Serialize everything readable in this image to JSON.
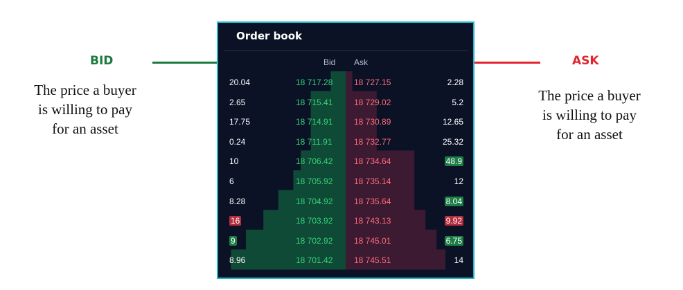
{
  "bid_side": {
    "title": "BID",
    "description": [
      "The price a buyer",
      "is willing to pay",
      "for an asset"
    ],
    "color": "#1a7a3c"
  },
  "ask_side": {
    "title": "ASK",
    "description": [
      "The price a buyer",
      "is willing to pay",
      "for an asset"
    ],
    "color": "#e2242d"
  },
  "order_book": {
    "title": "Order book",
    "bid_header": "Bid",
    "ask_header": "Ask",
    "rows": [
      {
        "bid_qty": "20.04",
        "bid_price": "18 717.28",
        "ask_price": "18 727.15",
        "ask_qty": "2.28"
      },
      {
        "bid_qty": "2.65",
        "bid_price": "18 715.41",
        "ask_price": "18 729.02",
        "ask_qty": "5.2"
      },
      {
        "bid_qty": "17.75",
        "bid_price": "18 714.91",
        "ask_price": "18 730.89",
        "ask_qty": "12.65"
      },
      {
        "bid_qty": "0.24",
        "bid_price": "18 711.91",
        "ask_price": "18 732.77",
        "ask_qty": "25.32"
      },
      {
        "bid_qty": "10",
        "bid_price": "18 706.42",
        "ask_price": "18 734.64",
        "ask_qty": "48.9",
        "ask_qty_highlight": "green"
      },
      {
        "bid_qty": "6",
        "bid_price": "18 705.92",
        "ask_price": "18 735.14",
        "ask_qty": "12"
      },
      {
        "bid_qty": "8.28",
        "bid_price": "18 704.92",
        "ask_price": "18 735.64",
        "ask_qty": "8.04",
        "ask_qty_highlight": "green"
      },
      {
        "bid_qty": "16",
        "bid_qty_highlight": "red",
        "bid_price": "18 703.92",
        "ask_price": "18 743.13",
        "ask_qty": "9.92",
        "ask_qty_highlight": "red"
      },
      {
        "bid_qty": "9",
        "bid_qty_highlight": "green",
        "bid_price": "18 702.92",
        "ask_price": "18 745.01",
        "ask_qty": "6.75",
        "ask_qty_highlight": "green"
      },
      {
        "bid_qty": "8.96",
        "bid_price": "18 701.42",
        "ask_price": "18 745.51",
        "ask_qty": "14"
      }
    ],
    "bid_depth_fraction": [
      0.12,
      0.28,
      0.28,
      0.28,
      0.36,
      0.42,
      0.54,
      0.66,
      0.8,
      0.92
    ],
    "ask_depth_fraction": [
      0.06,
      0.28,
      0.28,
      0.28,
      0.62,
      0.62,
      0.62,
      0.72,
      0.82,
      0.9
    ],
    "colors": {
      "bid_price": "#37d07a",
      "ask_price": "#ff6b77",
      "bid_depth": "#0f4a36",
      "ask_depth": "#3c1a32",
      "border": "#1fb7c9",
      "background": "#0b1226"
    }
  }
}
